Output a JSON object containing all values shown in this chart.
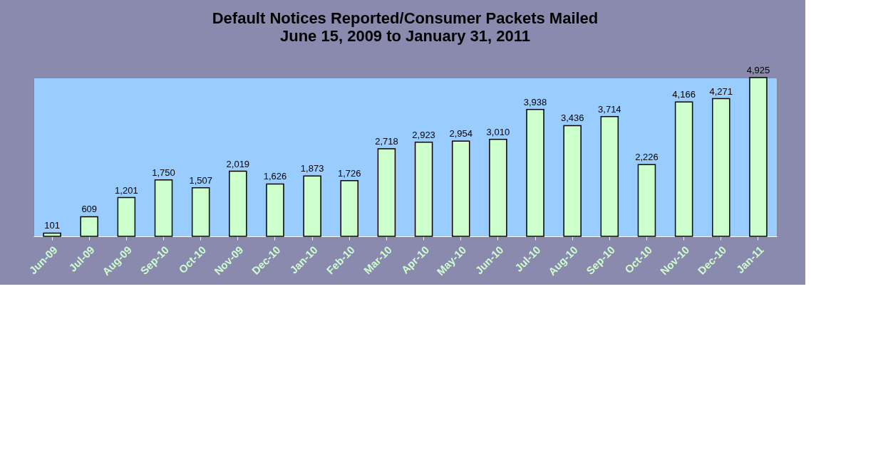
{
  "chart_data": {
    "type": "bar",
    "title": "Default Notices Reported/Consumer Packets Mailed",
    "subtitle": "June 15, 2009 to January 31, 2011",
    "categories": [
      "Jun-09",
      "Jul-09",
      "Aug-09",
      "Sep-10",
      "Oct-10",
      "Nov-09",
      "Dec-10",
      "Jan-10",
      "Feb-10",
      "Mar-10",
      "Apr-10",
      "May-10",
      "Jun-10",
      "Jul-10",
      "Aug-10",
      "Sep-10",
      "Oct-10",
      "Nov-10",
      "Dec-10",
      "Jan-11"
    ],
    "values": [
      101,
      609,
      1201,
      1750,
      1507,
      2019,
      1626,
      1873,
      1726,
      2718,
      2923,
      2954,
      3010,
      3938,
      3436,
      3714,
      2226,
      4166,
      4271,
      4925
    ],
    "value_labels": [
      "101",
      "609",
      "1,201",
      "1,750",
      "1,507",
      "2,019",
      "1,626",
      "1,873",
      "1,726",
      "2,718",
      "2,923",
      "2,954",
      "3,010",
      "3,938",
      "3,436",
      "3,714",
      "2,226",
      "4,166",
      "4,271",
      "4,925"
    ],
    "color": "#ccffcc"
  }
}
